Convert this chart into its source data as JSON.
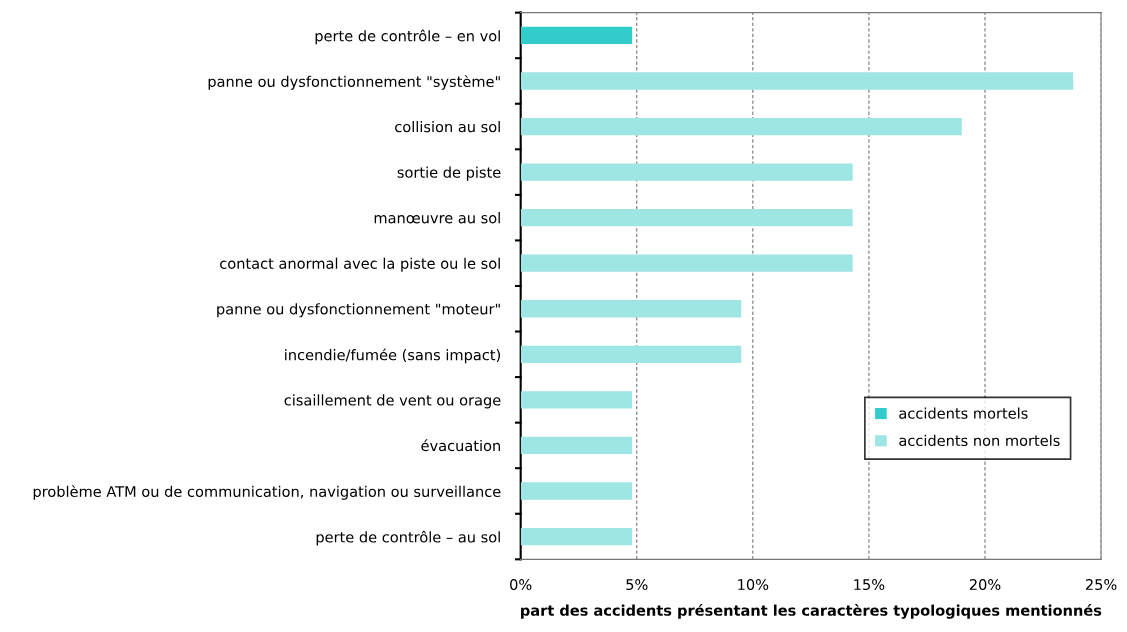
{
  "chart_data": {
    "type": "bar",
    "orientation": "horizontal",
    "xlabel": "part des accidents présentant les caractères typologiques mentionnés",
    "categories": [
      "perte de contrôle – en vol",
      "panne ou dysfonctionnement \"système\"",
      "collision au sol",
      "sortie de piste",
      "manœuvre au sol",
      "contact anormal avec la piste ou le sol",
      "panne ou dysfonctionnement \"moteur\"",
      "incendie/fumée (sans impact)",
      "cisaillement de vent ou orage",
      "évacuation",
      "problème ATM ou de communication, navigation ou surveillance",
      "perte de contrôle – au sol"
    ],
    "series": [
      {
        "name": "accidents mortels",
        "color": "#33cccc",
        "values": [
          4.8,
          null,
          null,
          null,
          null,
          null,
          null,
          null,
          null,
          null,
          null,
          null
        ]
      },
      {
        "name": "accidents non mortels",
        "color": "#9de6e3",
        "values": [
          null,
          23.8,
          19.0,
          14.3,
          14.3,
          14.3,
          9.5,
          9.5,
          4.8,
          4.8,
          4.8,
          4.8
        ]
      }
    ],
    "xlim": [
      0,
      25
    ],
    "xticks": [
      {
        "value": 0,
        "label": "0%"
      },
      {
        "value": 5,
        "label": "5%"
      },
      {
        "value": 10,
        "label": "10%"
      },
      {
        "value": 15,
        "label": "15%"
      },
      {
        "value": 20,
        "label": "20%"
      },
      {
        "value": 25,
        "label": "25%"
      }
    ],
    "grid": "x",
    "legend": "bottom right"
  }
}
